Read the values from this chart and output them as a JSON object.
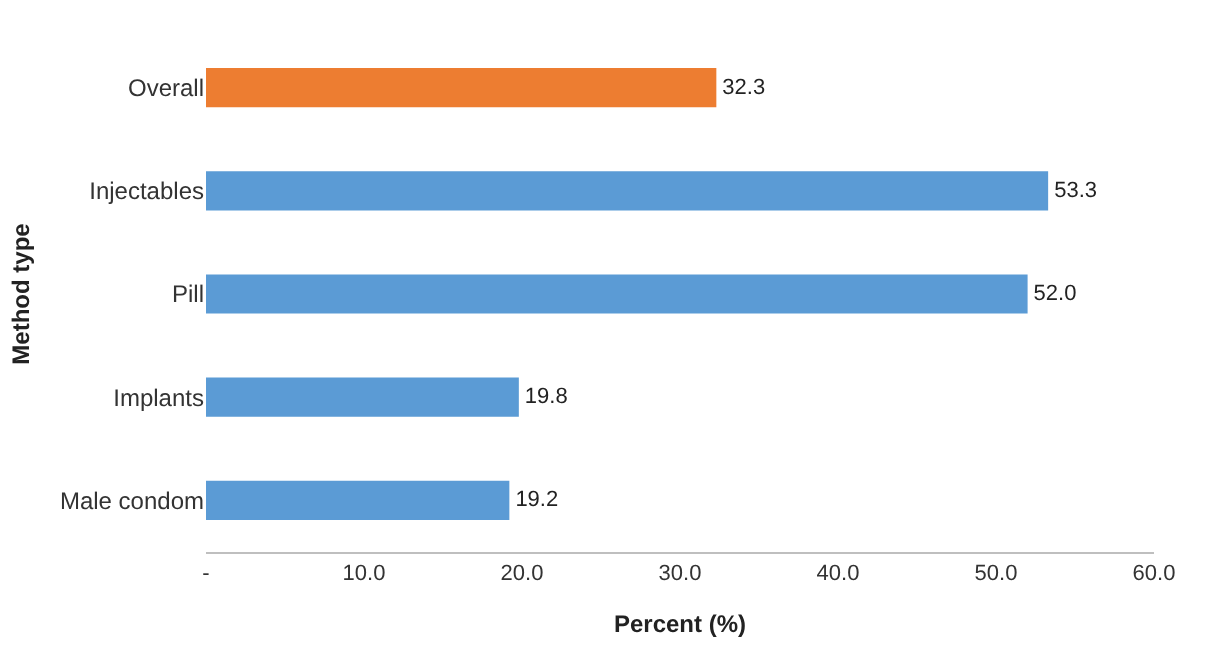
{
  "chart_data": {
    "type": "bar",
    "orientation": "horizontal",
    "xlabel": "Percent (%)",
    "ylabel": "Method type",
    "categories": [
      "Overall",
      "Injectables",
      "Pill",
      "Implants",
      "Male condom"
    ],
    "values": [
      32.3,
      53.3,
      52.0,
      19.8,
      19.2
    ],
    "value_labels": [
      "32.3",
      "53.3",
      "52.0",
      "19.8",
      "19.2"
    ],
    "colors": [
      "#ed7d31",
      "#5b9bd5",
      "#5b9bd5",
      "#5b9bd5",
      "#5b9bd5"
    ],
    "xlim": [
      0,
      60
    ],
    "xticks": [
      {
        "value": 0,
        "label": "-"
      },
      {
        "value": 10,
        "label": "10.0"
      },
      {
        "value": 20,
        "label": "20.0"
      },
      {
        "value": 30,
        "label": "30.0"
      },
      {
        "value": 40,
        "label": "40.0"
      },
      {
        "value": 50,
        "label": "50.0"
      },
      {
        "value": 60,
        "label": "60.0"
      }
    ],
    "legend": false
  }
}
